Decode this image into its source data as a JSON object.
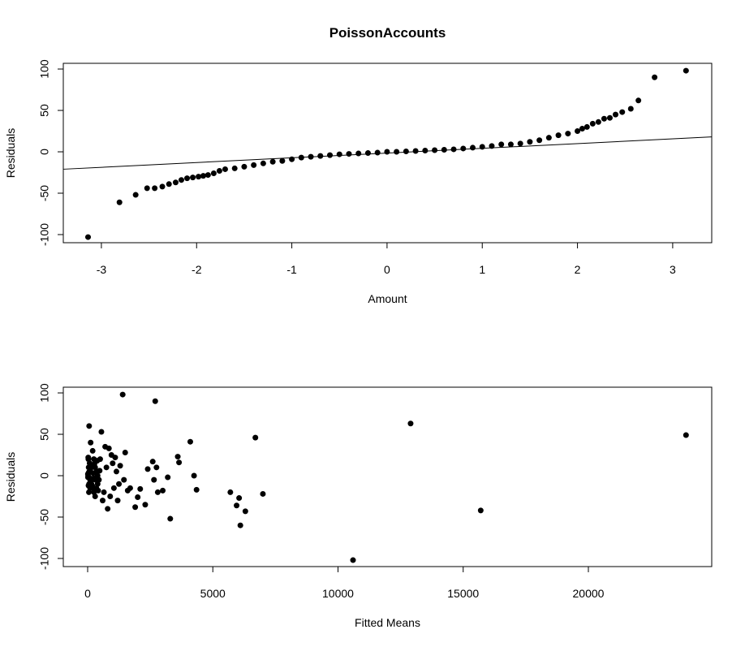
{
  "chart_data": [
    {
      "type": "scatter",
      "title": "PoissonAccounts",
      "xlabel": "Amount",
      "ylabel": "Residuals",
      "color": "#000000",
      "xlim": [
        -3.4,
        3.41
      ],
      "ylim": [
        -109.8,
        106.9
      ],
      "xticks": [
        -3,
        -2,
        -1,
        0,
        1,
        2,
        3
      ],
      "yticks": [
        -100,
        -50,
        0,
        50,
        100
      ],
      "x": [
        -3.14,
        -2.81,
        -2.64,
        -2.52,
        -2.44,
        -2.36,
        -2.29,
        -2.22,
        -2.16,
        -2.1,
        -2.04,
        -1.98,
        -1.93,
        -1.88,
        -1.82,
        -1.76,
        -1.7,
        -1.6,
        -1.5,
        -1.4,
        -1.3,
        -1.2,
        -1.1,
        -1,
        -0.9,
        -0.8,
        -0.7,
        -0.6,
        -0.5,
        -0.4,
        -0.3,
        -0.2,
        -0.1,
        0,
        0.1,
        0.2,
        0.3,
        0.4,
        0.5,
        0.6,
        0.7,
        0.8,
        0.9,
        1,
        1.1,
        1.2,
        1.3,
        1.4,
        1.5,
        1.6,
        1.7,
        1.8,
        1.9,
        2,
        2.05,
        2.1,
        2.16,
        2.22,
        2.28,
        2.34,
        2.4,
        2.47,
        2.56,
        2.64,
        2.81,
        3.14
      ],
      "values": [
        -103,
        -61,
        -52,
        -44,
        -44,
        -42,
        -39,
        -37,
        -34,
        -32,
        -31,
        -30,
        -29,
        -28,
        -26,
        -23,
        -21,
        -20,
        -18,
        -16,
        -14,
        -12,
        -11,
        -9,
        -7,
        -6,
        -5,
        -4,
        -3,
        -2.5,
        -2,
        -1.5,
        -1,
        0,
        0,
        0.5,
        1,
        1.5,
        2,
        2.5,
        3,
        4,
        5,
        6,
        7,
        9,
        9,
        10,
        12,
        14,
        17,
        20,
        22,
        25,
        28,
        30,
        34,
        36,
        40,
        41,
        45,
        48,
        52,
        62,
        90,
        98
      ],
      "line": {
        "x": [
          -3.4,
          3.41
        ],
        "values": [
          -21,
          18
        ]
      }
    },
    {
      "type": "scatter",
      "xlabel": "Fitted Means",
      "ylabel": "Residuals",
      "color": "#000000",
      "xlim": [
        -972,
        24927
      ],
      "ylim": [
        -109.8,
        106.9
      ],
      "xticks": [
        0,
        5000,
        10000,
        15000,
        20000
      ],
      "yticks": [
        -100,
        -50,
        0,
        50,
        100
      ],
      "x": [
        60,
        120,
        200,
        250,
        300,
        350,
        400,
        100,
        150,
        200,
        250,
        300,
        350,
        400,
        450,
        500,
        550,
        600,
        650,
        700,
        750,
        800,
        850,
        900,
        950,
        1000,
        1050,
        1100,
        1150,
        1200,
        1250,
        1300,
        1400,
        1450,
        1500,
        1600,
        1700,
        1900,
        2000,
        2100,
        2300,
        2400,
        2600,
        2650,
        2700,
        2750,
        2800,
        3000,
        3200,
        3300,
        3600,
        3650,
        4100,
        4250,
        4350,
        5700,
        5950,
        6050,
        6100,
        6300,
        6700,
        7000,
        10600,
        12900,
        15700,
        23900,
        20,
        40,
        60,
        80,
        100,
        30,
        50,
        70,
        90,
        110,
        130,
        160,
        180,
        220,
        240,
        270,
        320,
        380,
        420,
        480,
        10,
        15,
        25,
        35,
        45
      ],
      "values": [
        60,
        40,
        30,
        20,
        10,
        5,
        0,
        -5,
        -10,
        -15,
        -20,
        -25,
        -15,
        -10,
        -5,
        20,
        53,
        -30,
        -20,
        35,
        10,
        -40,
        33,
        -25,
        25,
        15,
        -15,
        22,
        5,
        -30,
        -10,
        12,
        98,
        -5,
        28,
        -18,
        -15,
        -38,
        -26,
        -16,
        -35,
        8,
        17,
        -5,
        90,
        10,
        -20,
        -18,
        -2,
        -52,
        23,
        16,
        41,
        0,
        -17,
        -20,
        -36,
        -27,
        -60,
        -43,
        46,
        -22,
        -102,
        63,
        -42,
        49,
        0,
        10,
        -10,
        15,
        -15,
        20,
        -20,
        5,
        -3,
        8,
        -8,
        12,
        -12,
        3,
        -3,
        14,
        -5,
        18,
        -18,
        6,
        2,
        -2,
        22,
        -12,
        4
      ]
    }
  ]
}
